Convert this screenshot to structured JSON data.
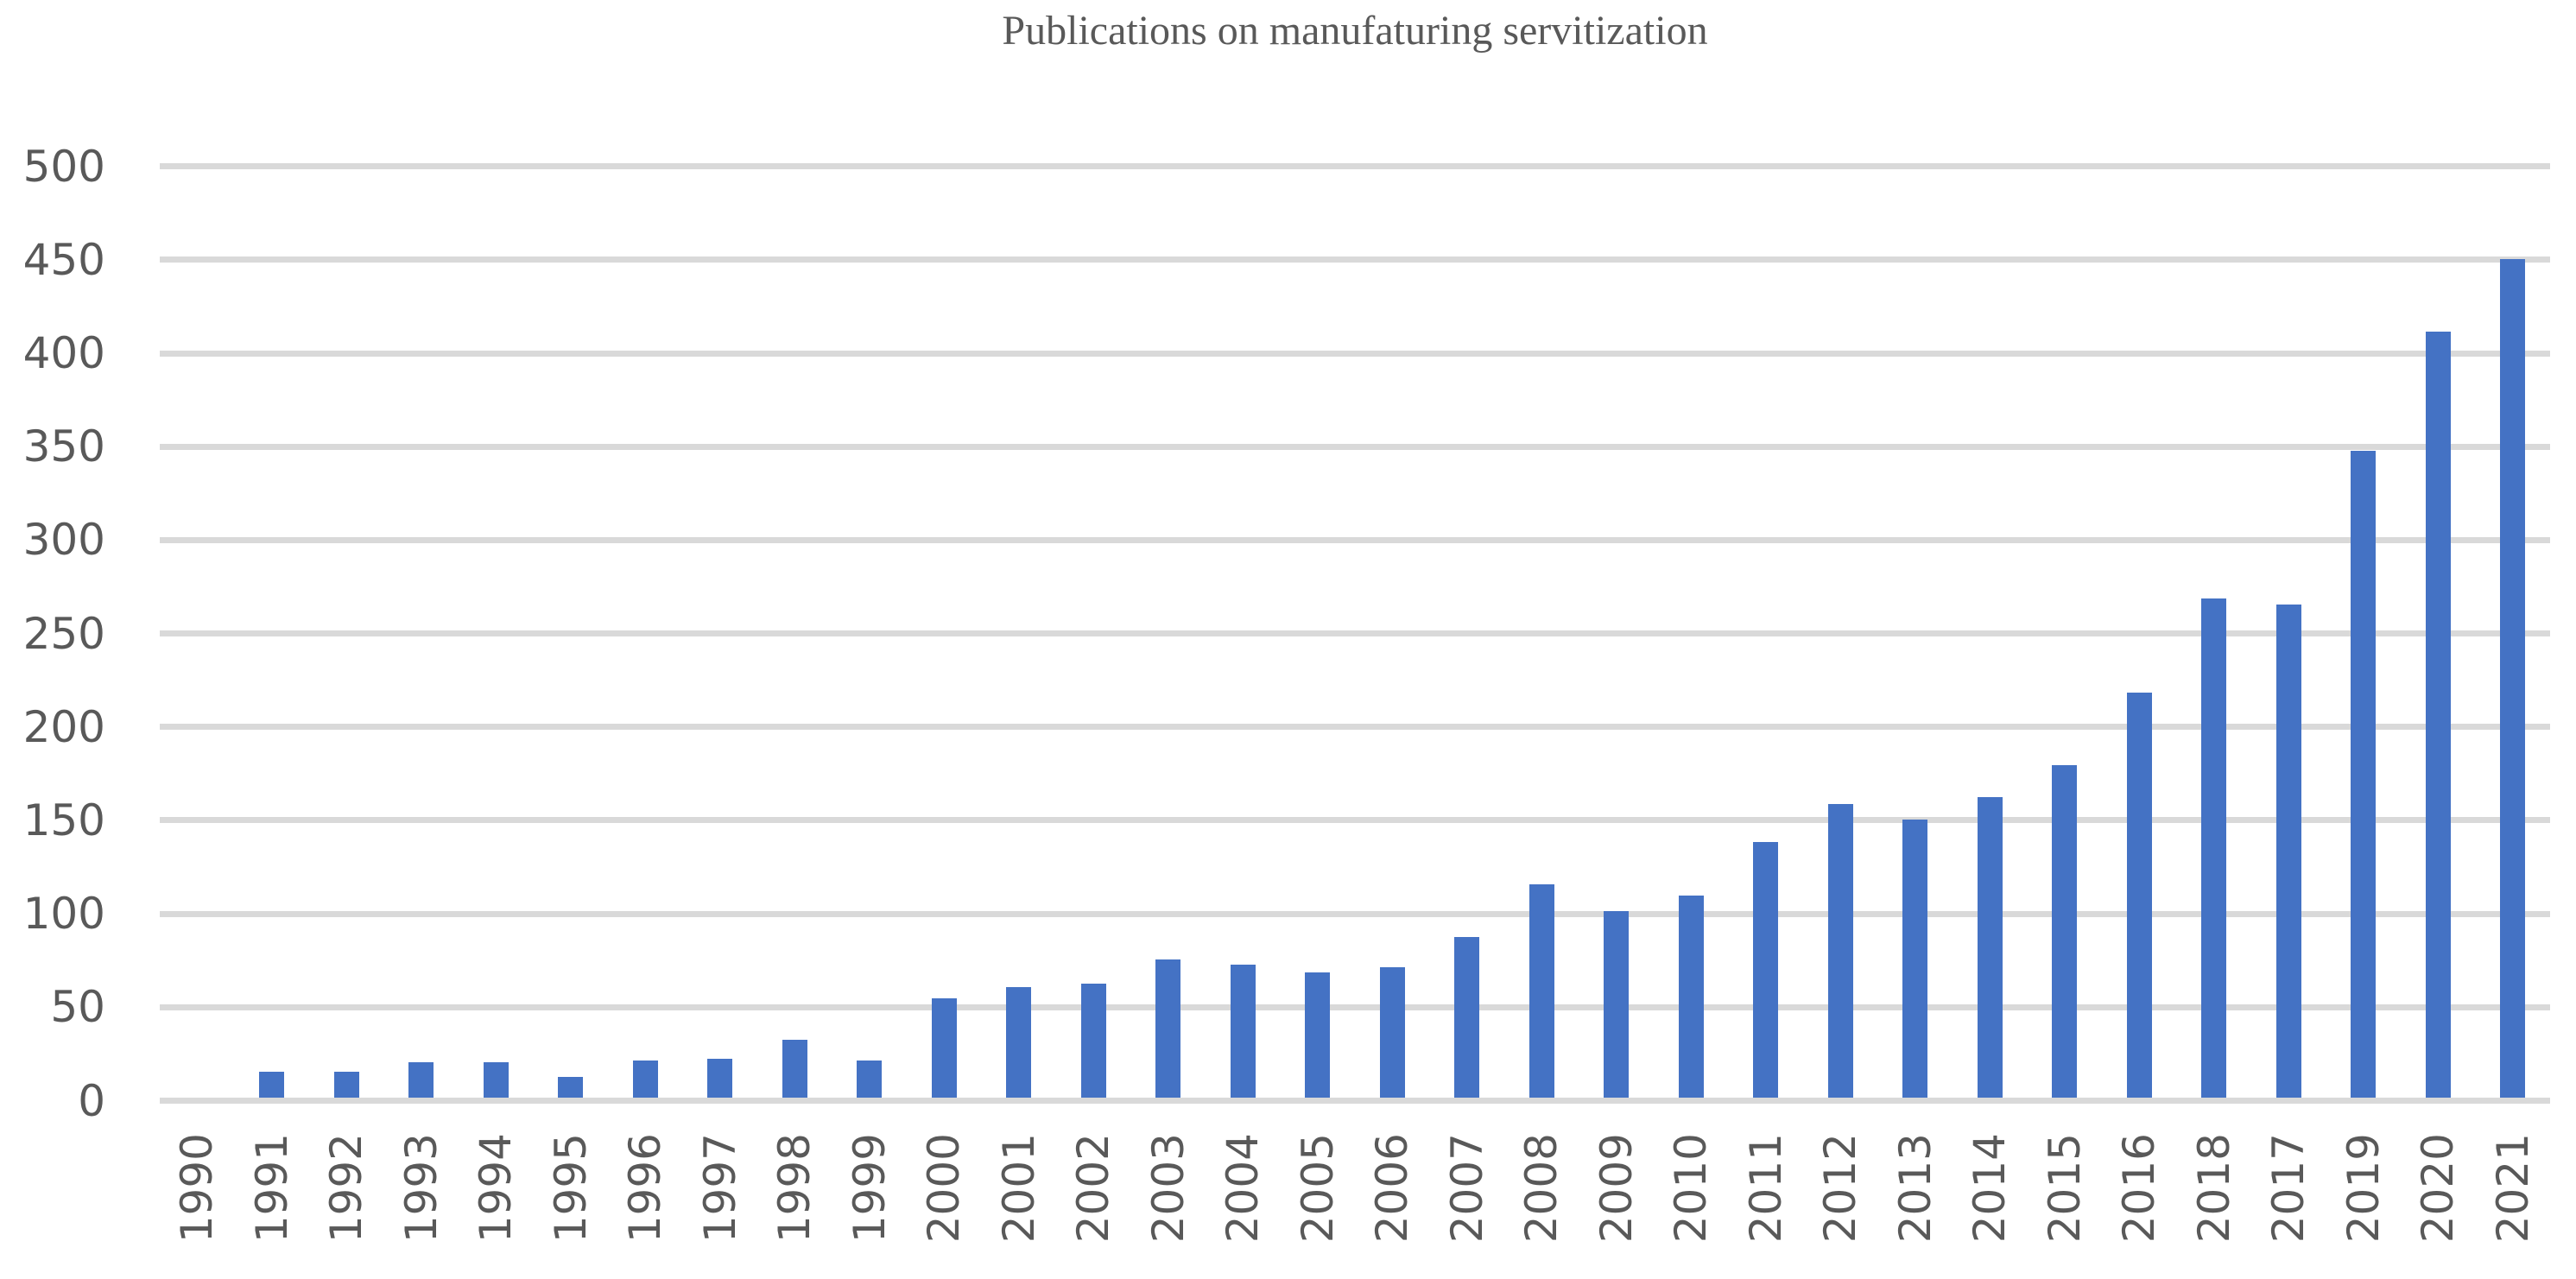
{
  "chart_data": {
    "type": "bar",
    "title": "Publications on manufaturing servitization",
    "categories": [
      "1990",
      "1991",
      "1992",
      "1993",
      "1994",
      "1995",
      "1996",
      "1997",
      "1998",
      "1999",
      "2000",
      "2001",
      "2002",
      "2003",
      "2004",
      "2005",
      "2006",
      "2007",
      "2008",
      "2009",
      "2010",
      "2011",
      "2012",
      "2013",
      "2014",
      "2015",
      "2016",
      "2018",
      "2017",
      "2019",
      "2020",
      "2021"
    ],
    "values": [
      0,
      14,
      14,
      19,
      19,
      11,
      20,
      21,
      31,
      20,
      53,
      59,
      61,
      74,
      71,
      67,
      70,
      86,
      114,
      100,
      108,
      137,
      157,
      149,
      161,
      178,
      217,
      267,
      264,
      346,
      410,
      449
    ],
    "xlabel": "",
    "ylabel": "",
    "ylim": [
      0,
      500
    ],
    "yticks": [
      0,
      50,
      100,
      150,
      200,
      250,
      300,
      350,
      400,
      450,
      500
    ],
    "grid": "horizontal",
    "legend": "none",
    "bar_color": "#4472C4",
    "gridline_color": "#D9D9D9",
    "text_color": "#595959",
    "background_color": "#FFFFFF"
  }
}
